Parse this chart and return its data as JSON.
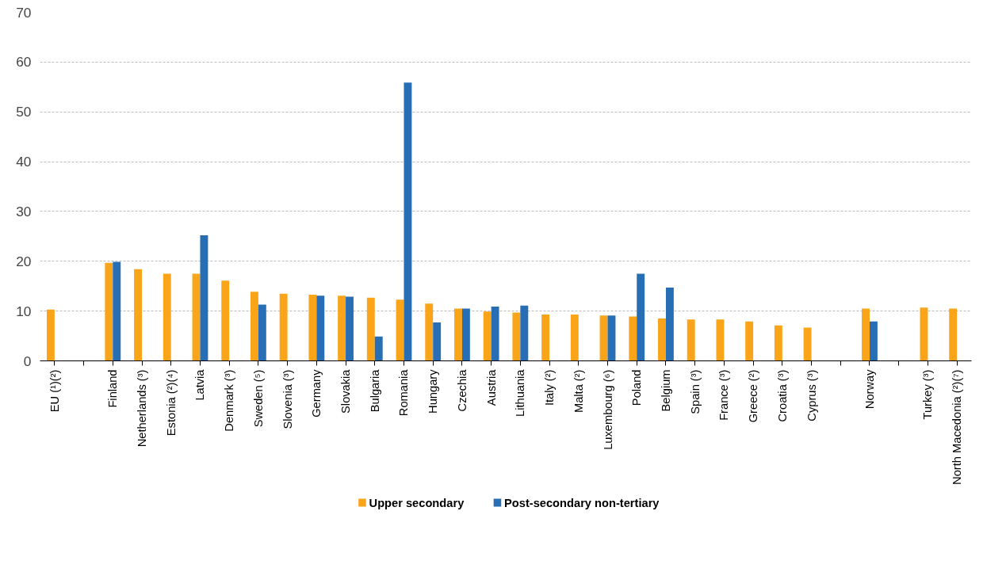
{
  "chart_data": {
    "type": "bar",
    "categories": [
      "EU (¹)(²)",
      null,
      "Finland",
      "Netherlands (³)",
      "Estonia (²)(⁴)",
      "Latvia",
      "Denmark (³)",
      "Sweden (⁵)",
      "Slovenia (³)",
      "Germany",
      "Slovakia",
      "Bulgaria",
      "Romania",
      "Hungary",
      "Czechia",
      "Austria",
      "Lithuania",
      "Italy (²)",
      "Malta (²)",
      "Luxembourg (⁶)",
      "Poland",
      "Belgium",
      "Spain (³)",
      "France (³)",
      "Greece (²)",
      "Croatia (³)",
      "Cyprus (³)",
      null,
      "Norway",
      null,
      "Turkey (³)",
      "North Macedonia (²)(⁷)"
    ],
    "series": [
      {
        "name": "Upper secondary",
        "color": "#faa519",
        "values": [
          10.3,
          null,
          19.7,
          18.4,
          17.5,
          17.5,
          16.1,
          13.9,
          13.5,
          13.3,
          13.1,
          12.7,
          12.3,
          11.5,
          10.5,
          9.9,
          9.7,
          9.3,
          9.3,
          9.1,
          8.9,
          8.5,
          8.3,
          8.3,
          7.9,
          7.1,
          6.7,
          null,
          10.5,
          null,
          10.7,
          10.5
        ]
      },
      {
        "name": "Post-secondary non-tertiary",
        "color": "#286eb4",
        "values": [
          null,
          null,
          19.9,
          null,
          null,
          25.2,
          null,
          11.3,
          null,
          13.1,
          12.9,
          4.9,
          55.9,
          7.7,
          10.5,
          10.9,
          11.1,
          null,
          null,
          9.1,
          17.5,
          14.7,
          null,
          null,
          null,
          null,
          null,
          null,
          7.9,
          null,
          null,
          null
        ]
      }
    ],
    "ylim": [
      0,
      70
    ],
    "yticks": [
      0,
      10,
      20,
      30,
      40,
      50,
      60,
      70
    ],
    "grid": "y",
    "legend": "bottom"
  }
}
